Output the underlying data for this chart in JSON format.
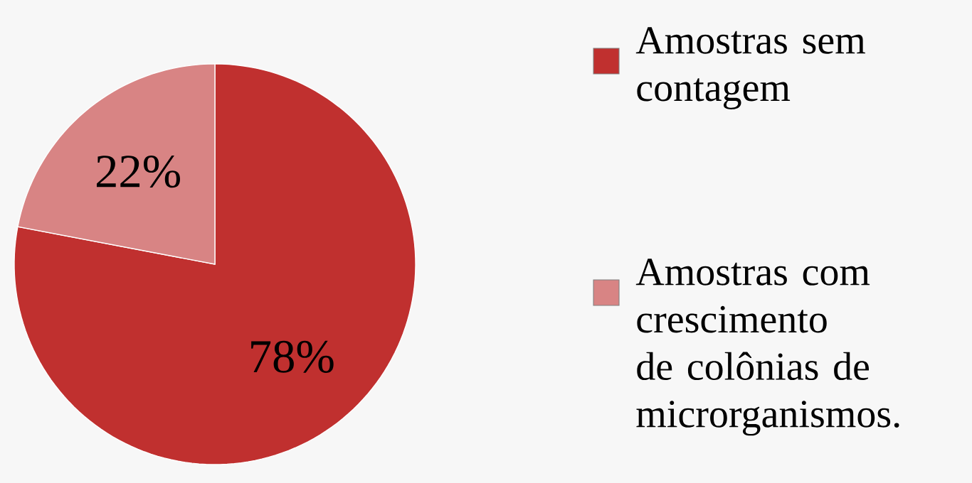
{
  "chart_data": {
    "type": "pie",
    "categories": [
      "Amostras sem contagem",
      "Amostras com crescimento de colônias de microrganismos."
    ],
    "values": [
      78,
      22
    ],
    "colors": [
      "#c0302f",
      "#d88484"
    ],
    "value_labels": [
      "78%",
      "22%"
    ],
    "legend": "right"
  }
}
